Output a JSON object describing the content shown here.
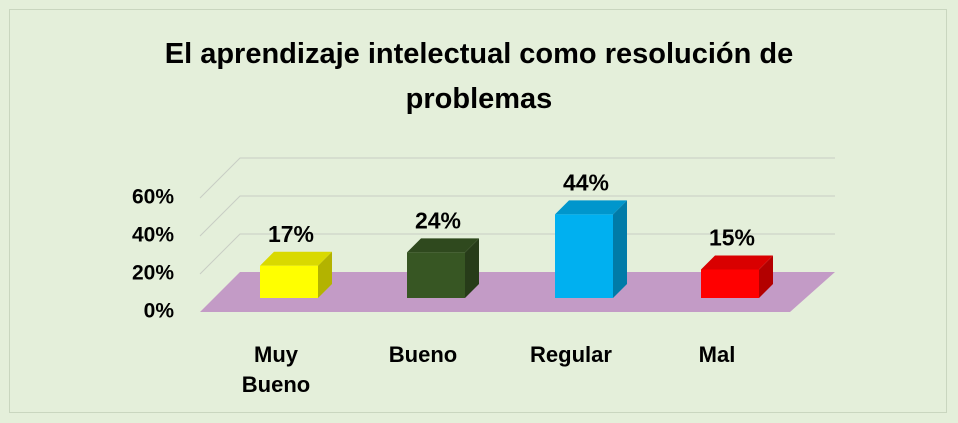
{
  "chart_data": {
    "type": "bar3d",
    "title": "El aprendizaje intelectual como resolución de problemas",
    "categories": [
      "Muy Bueno",
      "Bueno",
      "Regular",
      "Mal"
    ],
    "values": [
      17,
      24,
      44,
      15
    ],
    "value_labels": [
      "17%",
      "24%",
      "44%",
      "15%"
    ],
    "colors": [
      "#ffff00",
      "#375623",
      "#00b0f0",
      "#ff0000"
    ],
    "ylim": [
      0,
      60
    ],
    "yticks": [
      {
        "value": 0,
        "label": "0%"
      },
      {
        "value": 20,
        "label": "20%"
      },
      {
        "value": 40,
        "label": "40%"
      },
      {
        "value": 60,
        "label": "60%"
      }
    ],
    "grid": true
  }
}
